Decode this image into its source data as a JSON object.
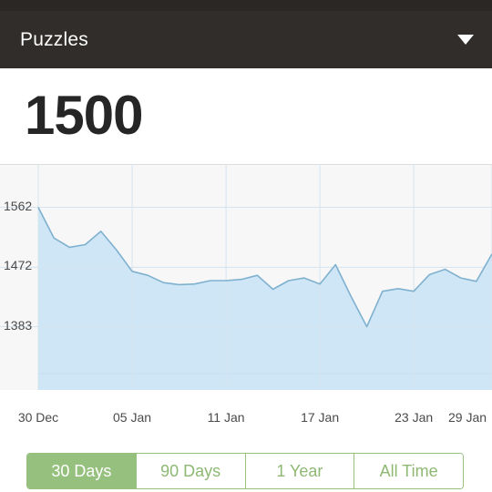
{
  "header": {
    "title": "Puzzles",
    "dropdown_icon": "chevron-down-icon"
  },
  "rating": "1500",
  "range_tabs": [
    {
      "label": "30 Days",
      "active": true
    },
    {
      "label": "90 Days",
      "active": false
    },
    {
      "label": "1 Year",
      "active": false
    },
    {
      "label": "All Time",
      "active": false
    }
  ],
  "colors": {
    "header_bg": "#302d2a",
    "accent_green": "#96c07e",
    "line": "#7fb1cf",
    "area_fill": "#cfe6f6"
  },
  "chart_data": {
    "type": "area",
    "title": "",
    "xlabel": "",
    "ylabel": "",
    "x_tick_labels": [
      "30 Dec",
      "05 Jan",
      "11 Jan",
      "17 Jan",
      "23 Jan",
      "29 Jan"
    ],
    "y_tick_labels": [
      "1562",
      "1472",
      "1383"
    ],
    "y_ticks": [
      1562,
      1472,
      1383
    ],
    "ylim": [
      1288,
      1627
    ],
    "grid": true,
    "series": [
      {
        "values": [
          1562,
          1516,
          1502,
          1506,
          1526,
          1498,
          1466,
          1460,
          1449,
          1446,
          1447,
          1452,
          1452,
          1454,
          1460,
          1439,
          1452,
          1456,
          1447,
          1476,
          1428,
          1383,
          1436,
          1440,
          1436,
          1461,
          1469,
          1456,
          1451,
          1492
        ]
      }
    ]
  }
}
